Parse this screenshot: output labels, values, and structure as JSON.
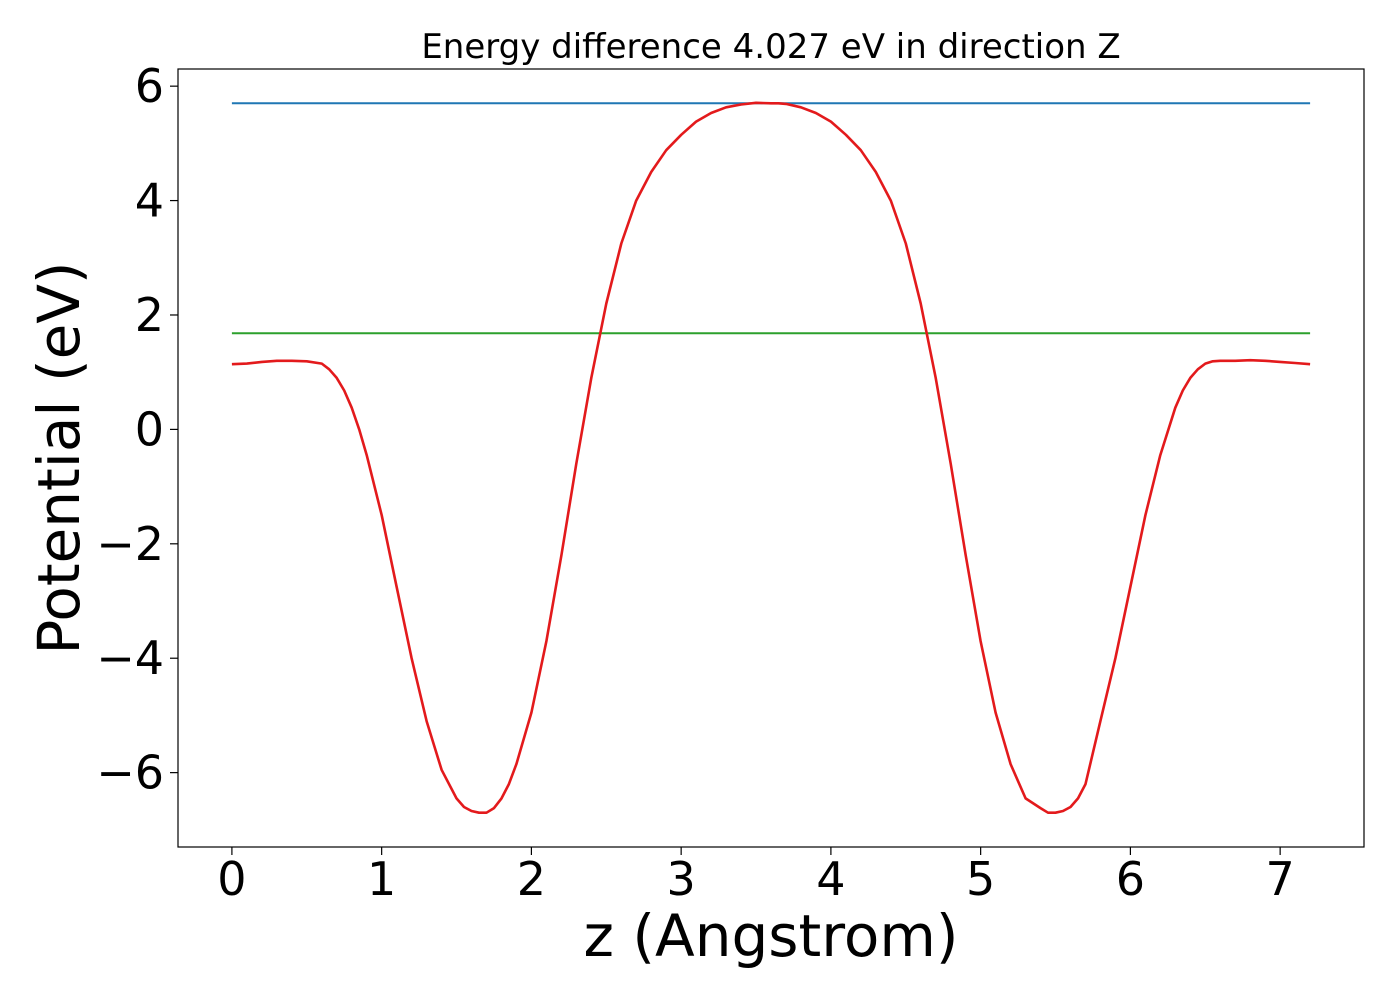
{
  "chart_data": {
    "type": "line",
    "title": "Energy difference 4.027 eV in direction Z",
    "xlabel": "z (Angstrom)",
    "ylabel": "Potential (eV)",
    "xlim": [
      -0.36,
      7.56
    ],
    "ylim": [
      -7.3,
      6.3
    ],
    "xticks": [
      0,
      1,
      2,
      3,
      4,
      5,
      6,
      7
    ],
    "xtick_labels": [
      "0",
      "1",
      "2",
      "3",
      "4",
      "5",
      "6",
      "7"
    ],
    "yticks": [
      -6,
      -4,
      -2,
      0,
      2,
      4,
      6
    ],
    "ytick_labels": [
      "−6",
      "−4",
      "−2",
      "0",
      "2",
      "4",
      "6"
    ],
    "grid": false,
    "series": [
      {
        "color": "#1f77b4",
        "x": [
          0,
          7.2
        ],
        "y": [
          5.7,
          5.7
        ]
      },
      {
        "color": "#2ca02c",
        "x": [
          0,
          7.2
        ],
        "y": [
          1.68,
          1.68
        ]
      },
      {
        "color": "#e31a1c",
        "x": [
          0,
          0.1,
          0.2,
          0.3,
          0.4,
          0.5,
          0.6,
          0.65,
          0.7,
          0.75,
          0.8,
          0.85,
          0.9,
          1.0,
          1.1,
          1.2,
          1.3,
          1.4,
          1.5,
          1.55,
          1.6,
          1.65,
          1.7,
          1.75,
          1.8,
          1.85,
          1.9,
          2.0,
          2.1,
          2.2,
          2.3,
          2.4,
          2.5,
          2.6,
          2.7,
          2.8,
          2.9,
          3.0,
          3.1,
          3.2,
          3.3,
          3.4,
          3.5,
          3.6,
          3.65,
          3.7,
          3.8,
          3.9,
          4.0,
          4.1,
          4.2,
          4.3,
          4.4,
          4.5,
          4.6,
          4.7,
          4.8,
          4.9,
          5.0,
          5.1,
          5.2,
          5.3,
          5.4,
          5.45,
          5.5,
          5.55,
          5.6,
          5.65,
          5.7,
          5.8,
          5.9,
          6.0,
          6.1,
          6.2,
          6.3,
          6.35,
          6.4,
          6.45,
          6.5,
          6.55,
          6.6,
          6.7,
          6.8,
          6.9,
          7.0,
          7.1,
          7.2
        ],
        "y": [
          1.14,
          1.15,
          1.18,
          1.2,
          1.2,
          1.19,
          1.15,
          1.05,
          0.9,
          0.68,
          0.38,
          0.0,
          -0.45,
          -1.5,
          -2.75,
          -4.0,
          -5.1,
          -5.95,
          -6.45,
          -6.6,
          -6.67,
          -6.7,
          -6.7,
          -6.62,
          -6.45,
          -6.2,
          -5.85,
          -4.95,
          -3.7,
          -2.2,
          -0.6,
          0.9,
          2.2,
          3.25,
          4.0,
          4.5,
          4.88,
          5.15,
          5.38,
          5.53,
          5.63,
          5.68,
          5.71,
          5.7,
          5.7,
          5.69,
          5.63,
          5.53,
          5.38,
          5.15,
          4.88,
          4.5,
          4.0,
          3.25,
          2.2,
          0.9,
          -0.6,
          -2.2,
          -3.7,
          -4.95,
          -5.85,
          -6.45,
          -6.62,
          -6.7,
          -6.7,
          -6.67,
          -6.6,
          -6.45,
          -6.2,
          -5.1,
          -4.0,
          -2.75,
          -1.5,
          -0.45,
          0.38,
          0.68,
          0.9,
          1.05,
          1.15,
          1.19,
          1.2,
          1.2,
          1.21,
          1.2,
          1.18,
          1.16,
          1.14
        ]
      }
    ]
  }
}
